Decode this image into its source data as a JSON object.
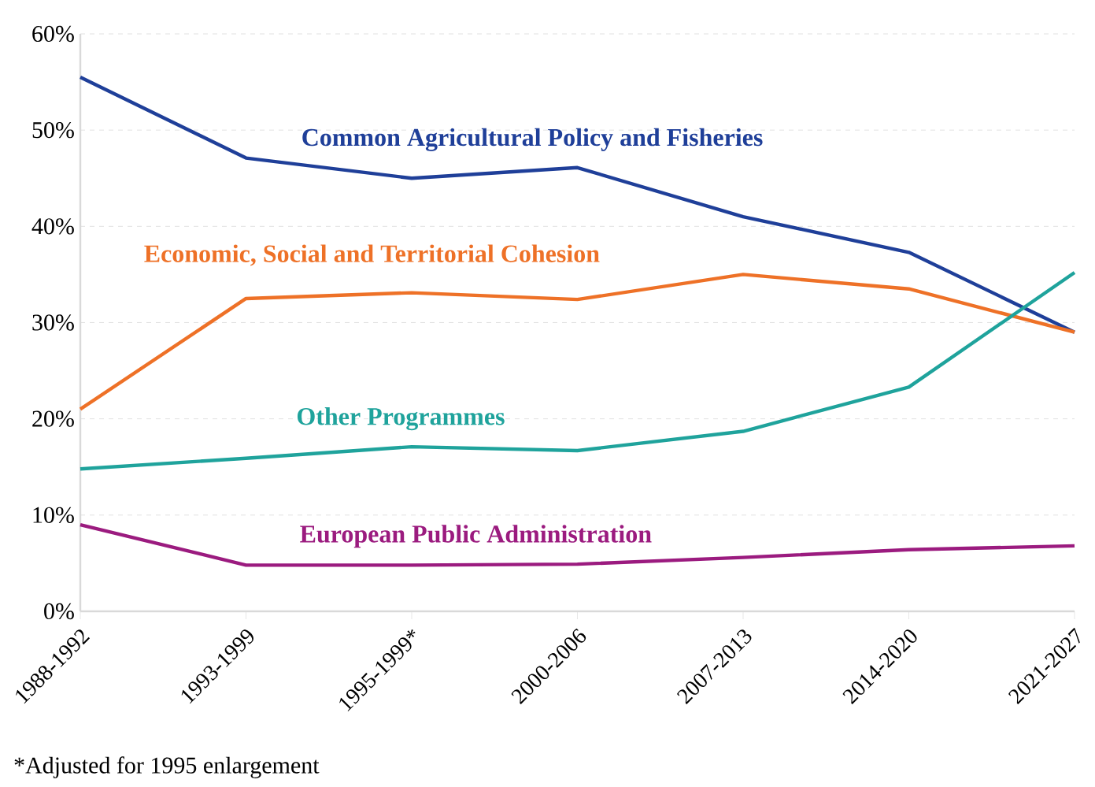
{
  "chart_data": {
    "type": "line",
    "categories": [
      "1988-1992",
      "1993-1999",
      "1995-1999*",
      "2000-2006",
      "2007-2013",
      "2014-2020",
      "2021-2027"
    ],
    "series": [
      {
        "name": "Common Agricultural Policy and Fisheries",
        "color": "#1f3f99",
        "values": [
          55.5,
          47.1,
          45.0,
          46.1,
          41.0,
          37.3,
          29.0
        ]
      },
      {
        "name": "Economic, Social and Territorial Cohesion",
        "color": "#ee7127",
        "values": [
          21.0,
          32.5,
          33.1,
          32.4,
          35.0,
          33.5,
          29.0
        ]
      },
      {
        "name": "Other Programmes",
        "color": "#1fa39c",
        "values": [
          14.8,
          15.9,
          17.1,
          16.7,
          18.7,
          23.3,
          35.2
        ]
      },
      {
        "name": "European Public Administration",
        "color": "#9b1b7f",
        "values": [
          9.0,
          4.8,
          4.8,
          4.9,
          5.6,
          6.4,
          6.8
        ]
      }
    ],
    "ylim": [
      0,
      60
    ],
    "yticks": [
      {
        "value": 0,
        "label": "0%"
      },
      {
        "value": 10,
        "label": "10%"
      },
      {
        "value": 20,
        "label": "20%"
      },
      {
        "value": 30,
        "label": "30%"
      },
      {
        "value": 40,
        "label": "40%"
      },
      {
        "value": 50,
        "label": "50%"
      },
      {
        "value": 60,
        "label": "60%"
      }
    ],
    "grid": "y",
    "marker": "none",
    "line_style": "solid",
    "annotations": [
      "*Adjusted for 1995 enlargement"
    ]
  }
}
